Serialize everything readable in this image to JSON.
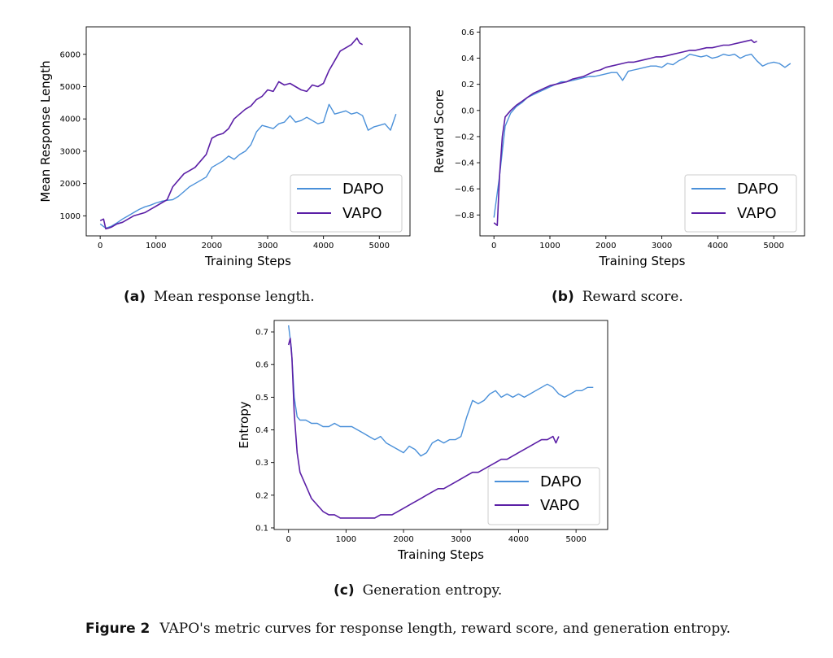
{
  "colors": {
    "dapo": "#4a90d9",
    "vapo": "#5b1fa6"
  },
  "captions": {
    "a": {
      "tag": "(a)",
      "text": "Mean response length."
    },
    "b": {
      "tag": "(b)",
      "text": "Reward score."
    },
    "c": {
      "tag": "(c)",
      "text": "Generation entropy."
    },
    "figure": {
      "tag": "Figure 2",
      "text": "VAPO's metric curves for response length, reward score, and generation entropy."
    }
  },
  "chart_data": [
    {
      "type": "line",
      "xlabel": "Training Steps",
      "ylabel": "Mean Response Length",
      "xlim": [
        -250,
        5550
      ],
      "ylim": [
        380,
        6850
      ],
      "xticks": [
        0,
        1000,
        2000,
        3000,
        4000,
        5000
      ],
      "yticks": [
        1000,
        2000,
        3000,
        4000,
        5000,
        6000
      ],
      "legend": "bottom-right",
      "series": [
        {
          "name": "DAPO",
          "x": [
            0,
            100,
            200,
            300,
            400,
            500,
            600,
            700,
            800,
            900,
            1000,
            1100,
            1200,
            1300,
            1400,
            1500,
            1600,
            1700,
            1800,
            1900,
            2000,
            2100,
            2200,
            2300,
            2400,
            2500,
            2600,
            2700,
            2800,
            2900,
            3000,
            3100,
            3200,
            3300,
            3400,
            3500,
            3600,
            3700,
            3800,
            3900,
            4000,
            4100,
            4200,
            4300,
            4400,
            4500,
            4600,
            4700,
            4800,
            4900,
            5000,
            5100,
            5200,
            5300
          ],
          "y": [
            750,
            620,
            680,
            780,
            900,
            1000,
            1100,
            1200,
            1280,
            1330,
            1400,
            1450,
            1480,
            1500,
            1600,
            1750,
            1900,
            2000,
            2100,
            2200,
            2500,
            2600,
            2700,
            2850,
            2750,
            2900,
            3000,
            3200,
            3600,
            3800,
            3750,
            3700,
            3850,
            3900,
            4100,
            3900,
            3950,
            4050,
            3950,
            3850,
            3900,
            4450,
            4150,
            4200,
            4250,
            4150,
            4200,
            4100,
            3650,
            3750,
            3800,
            3850,
            3650,
            4150
          ]
        },
        {
          "name": "VAPO",
          "x": [
            0,
            60,
            100,
            150,
            200,
            300,
            400,
            500,
            600,
            700,
            800,
            900,
            1000,
            1100,
            1200,
            1300,
            1400,
            1500,
            1600,
            1700,
            1800,
            1900,
            2000,
            2100,
            2200,
            2300,
            2400,
            2500,
            2600,
            2700,
            2800,
            2900,
            3000,
            3100,
            3200,
            3300,
            3400,
            3500,
            3600,
            3700,
            3800,
            3900,
            4000,
            4100,
            4200,
            4300,
            4400,
            4500,
            4600,
            4650,
            4700
          ],
          "y": [
            850,
            900,
            600,
            620,
            650,
            750,
            800,
            900,
            1000,
            1050,
            1100,
            1200,
            1300,
            1400,
            1500,
            1900,
            2100,
            2300,
            2400,
            2500,
            2700,
            2900,
            3400,
            3500,
            3550,
            3700,
            4000,
            4150,
            4300,
            4400,
            4600,
            4700,
            4900,
            4850,
            5150,
            5050,
            5100,
            5000,
            4900,
            4850,
            5050,
            5000,
            5100,
            5500,
            5800,
            6100,
            6200,
            6300,
            6500,
            6350,
            6300
          ]
        }
      ]
    },
    {
      "type": "line",
      "xlabel": "Training Steps",
      "ylabel": "Reward Score",
      "xlim": [
        -250,
        5550
      ],
      "ylim": [
        -0.96,
        0.64
      ],
      "xticks": [
        0,
        1000,
        2000,
        3000,
        4000,
        5000
      ],
      "yticks": [
        -0.8,
        -0.6,
        -0.4,
        -0.2,
        0.0,
        0.2,
        0.4,
        0.6
      ],
      "ytick_labels": [
        "−0.8",
        "−0.6",
        "−0.4",
        "−0.2",
        "0.0",
        "0.2",
        "0.4",
        "0.6"
      ],
      "legend": "bottom-right",
      "series": [
        {
          "name": "DAPO",
          "x": [
            0,
            100,
            200,
            300,
            400,
            500,
            600,
            700,
            800,
            900,
            1000,
            1100,
            1200,
            1300,
            1400,
            1500,
            1600,
            1700,
            1800,
            1900,
            2000,
            2100,
            2200,
            2300,
            2400,
            2500,
            2600,
            2700,
            2800,
            2900,
            3000,
            3100,
            3200,
            3300,
            3400,
            3500,
            3600,
            3700,
            3800,
            3900,
            4000,
            4100,
            4200,
            4300,
            4400,
            4500,
            4600,
            4700,
            4800,
            4900,
            5000,
            5100,
            5200,
            5300
          ],
          "y": [
            -0.82,
            -0.5,
            -0.12,
            -0.02,
            0.03,
            0.06,
            0.1,
            0.12,
            0.14,
            0.16,
            0.18,
            0.2,
            0.22,
            0.22,
            0.23,
            0.24,
            0.25,
            0.26,
            0.26,
            0.27,
            0.28,
            0.29,
            0.29,
            0.23,
            0.3,
            0.31,
            0.32,
            0.33,
            0.34,
            0.34,
            0.33,
            0.36,
            0.35,
            0.38,
            0.4,
            0.43,
            0.42,
            0.41,
            0.42,
            0.4,
            0.41,
            0.43,
            0.42,
            0.43,
            0.4,
            0.42,
            0.43,
            0.38,
            0.34,
            0.36,
            0.37,
            0.36,
            0.33,
            0.36
          ]
        },
        {
          "name": "VAPO",
          "x": [
            0,
            60,
            100,
            150,
            200,
            300,
            400,
            500,
            600,
            700,
            800,
            900,
            1000,
            1100,
            1200,
            1300,
            1400,
            1500,
            1600,
            1700,
            1800,
            1900,
            2000,
            2100,
            2200,
            2300,
            2400,
            2500,
            2600,
            2700,
            2800,
            2900,
            3000,
            3100,
            3200,
            3300,
            3400,
            3500,
            3600,
            3700,
            3800,
            3900,
            4000,
            4100,
            4200,
            4300,
            4400,
            4500,
            4600,
            4650,
            4700
          ],
          "y": [
            -0.86,
            -0.88,
            -0.5,
            -0.2,
            -0.05,
            0.0,
            0.04,
            0.07,
            0.1,
            0.13,
            0.15,
            0.17,
            0.19,
            0.2,
            0.21,
            0.22,
            0.24,
            0.25,
            0.26,
            0.28,
            0.3,
            0.31,
            0.33,
            0.34,
            0.35,
            0.36,
            0.37,
            0.37,
            0.38,
            0.39,
            0.4,
            0.41,
            0.41,
            0.42,
            0.43,
            0.44,
            0.45,
            0.46,
            0.46,
            0.47,
            0.48,
            0.48,
            0.49,
            0.5,
            0.5,
            0.51,
            0.52,
            0.53,
            0.54,
            0.52,
            0.53
          ]
        }
      ]
    },
    {
      "type": "line",
      "xlabel": "Training Steps",
      "ylabel": "Entropy",
      "xlim": [
        -250,
        5550
      ],
      "ylim": [
        0.095,
        0.735
      ],
      "xticks": [
        0,
        1000,
        2000,
        3000,
        4000,
        5000
      ],
      "yticks": [
        0.1,
        0.2,
        0.3,
        0.4,
        0.5,
        0.6,
        0.7
      ],
      "legend": "bottom-right",
      "series": [
        {
          "name": "DAPO",
          "x": [
            0,
            50,
            100,
            150,
            200,
            300,
            400,
            500,
            600,
            700,
            800,
            900,
            1000,
            1100,
            1200,
            1300,
            1400,
            1500,
            1600,
            1700,
            1800,
            1900,
            2000,
            2100,
            2200,
            2300,
            2400,
            2500,
            2600,
            2700,
            2800,
            2900,
            3000,
            3100,
            3200,
            3300,
            3400,
            3500,
            3600,
            3700,
            3800,
            3900,
            4000,
            4100,
            4200,
            4300,
            4400,
            4500,
            4600,
            4700,
            4800,
            4900,
            5000,
            5100,
            5200,
            5300
          ],
          "y": [
            0.72,
            0.65,
            0.5,
            0.44,
            0.43,
            0.43,
            0.42,
            0.42,
            0.41,
            0.41,
            0.42,
            0.41,
            0.41,
            0.41,
            0.4,
            0.39,
            0.38,
            0.37,
            0.38,
            0.36,
            0.35,
            0.34,
            0.33,
            0.35,
            0.34,
            0.32,
            0.33,
            0.36,
            0.37,
            0.36,
            0.37,
            0.37,
            0.38,
            0.44,
            0.49,
            0.48,
            0.49,
            0.51,
            0.52,
            0.5,
            0.51,
            0.5,
            0.51,
            0.5,
            0.51,
            0.52,
            0.53,
            0.54,
            0.53,
            0.51,
            0.5,
            0.51,
            0.52,
            0.52,
            0.53,
            0.53
          ]
        },
        {
          "name": "VAPO",
          "x": [
            0,
            30,
            60,
            100,
            150,
            200,
            300,
            400,
            500,
            600,
            700,
            800,
            900,
            1000,
            1100,
            1200,
            1300,
            1400,
            1500,
            1600,
            1700,
            1800,
            1900,
            2000,
            2100,
            2200,
            2300,
            2400,
            2500,
            2600,
            2700,
            2800,
            2900,
            3000,
            3100,
            3200,
            3300,
            3400,
            3500,
            3600,
            3700,
            3800,
            3900,
            4000,
            4100,
            4200,
            4300,
            4400,
            4500,
            4600,
            4650,
            4700
          ],
          "y": [
            0.66,
            0.68,
            0.62,
            0.45,
            0.33,
            0.27,
            0.23,
            0.19,
            0.17,
            0.15,
            0.14,
            0.14,
            0.13,
            0.13,
            0.13,
            0.13,
            0.13,
            0.13,
            0.13,
            0.14,
            0.14,
            0.14,
            0.15,
            0.16,
            0.17,
            0.18,
            0.19,
            0.2,
            0.21,
            0.22,
            0.22,
            0.23,
            0.24,
            0.25,
            0.26,
            0.27,
            0.27,
            0.28,
            0.29,
            0.3,
            0.31,
            0.31,
            0.32,
            0.33,
            0.34,
            0.35,
            0.36,
            0.37,
            0.37,
            0.38,
            0.36,
            0.38
          ]
        }
      ]
    }
  ]
}
